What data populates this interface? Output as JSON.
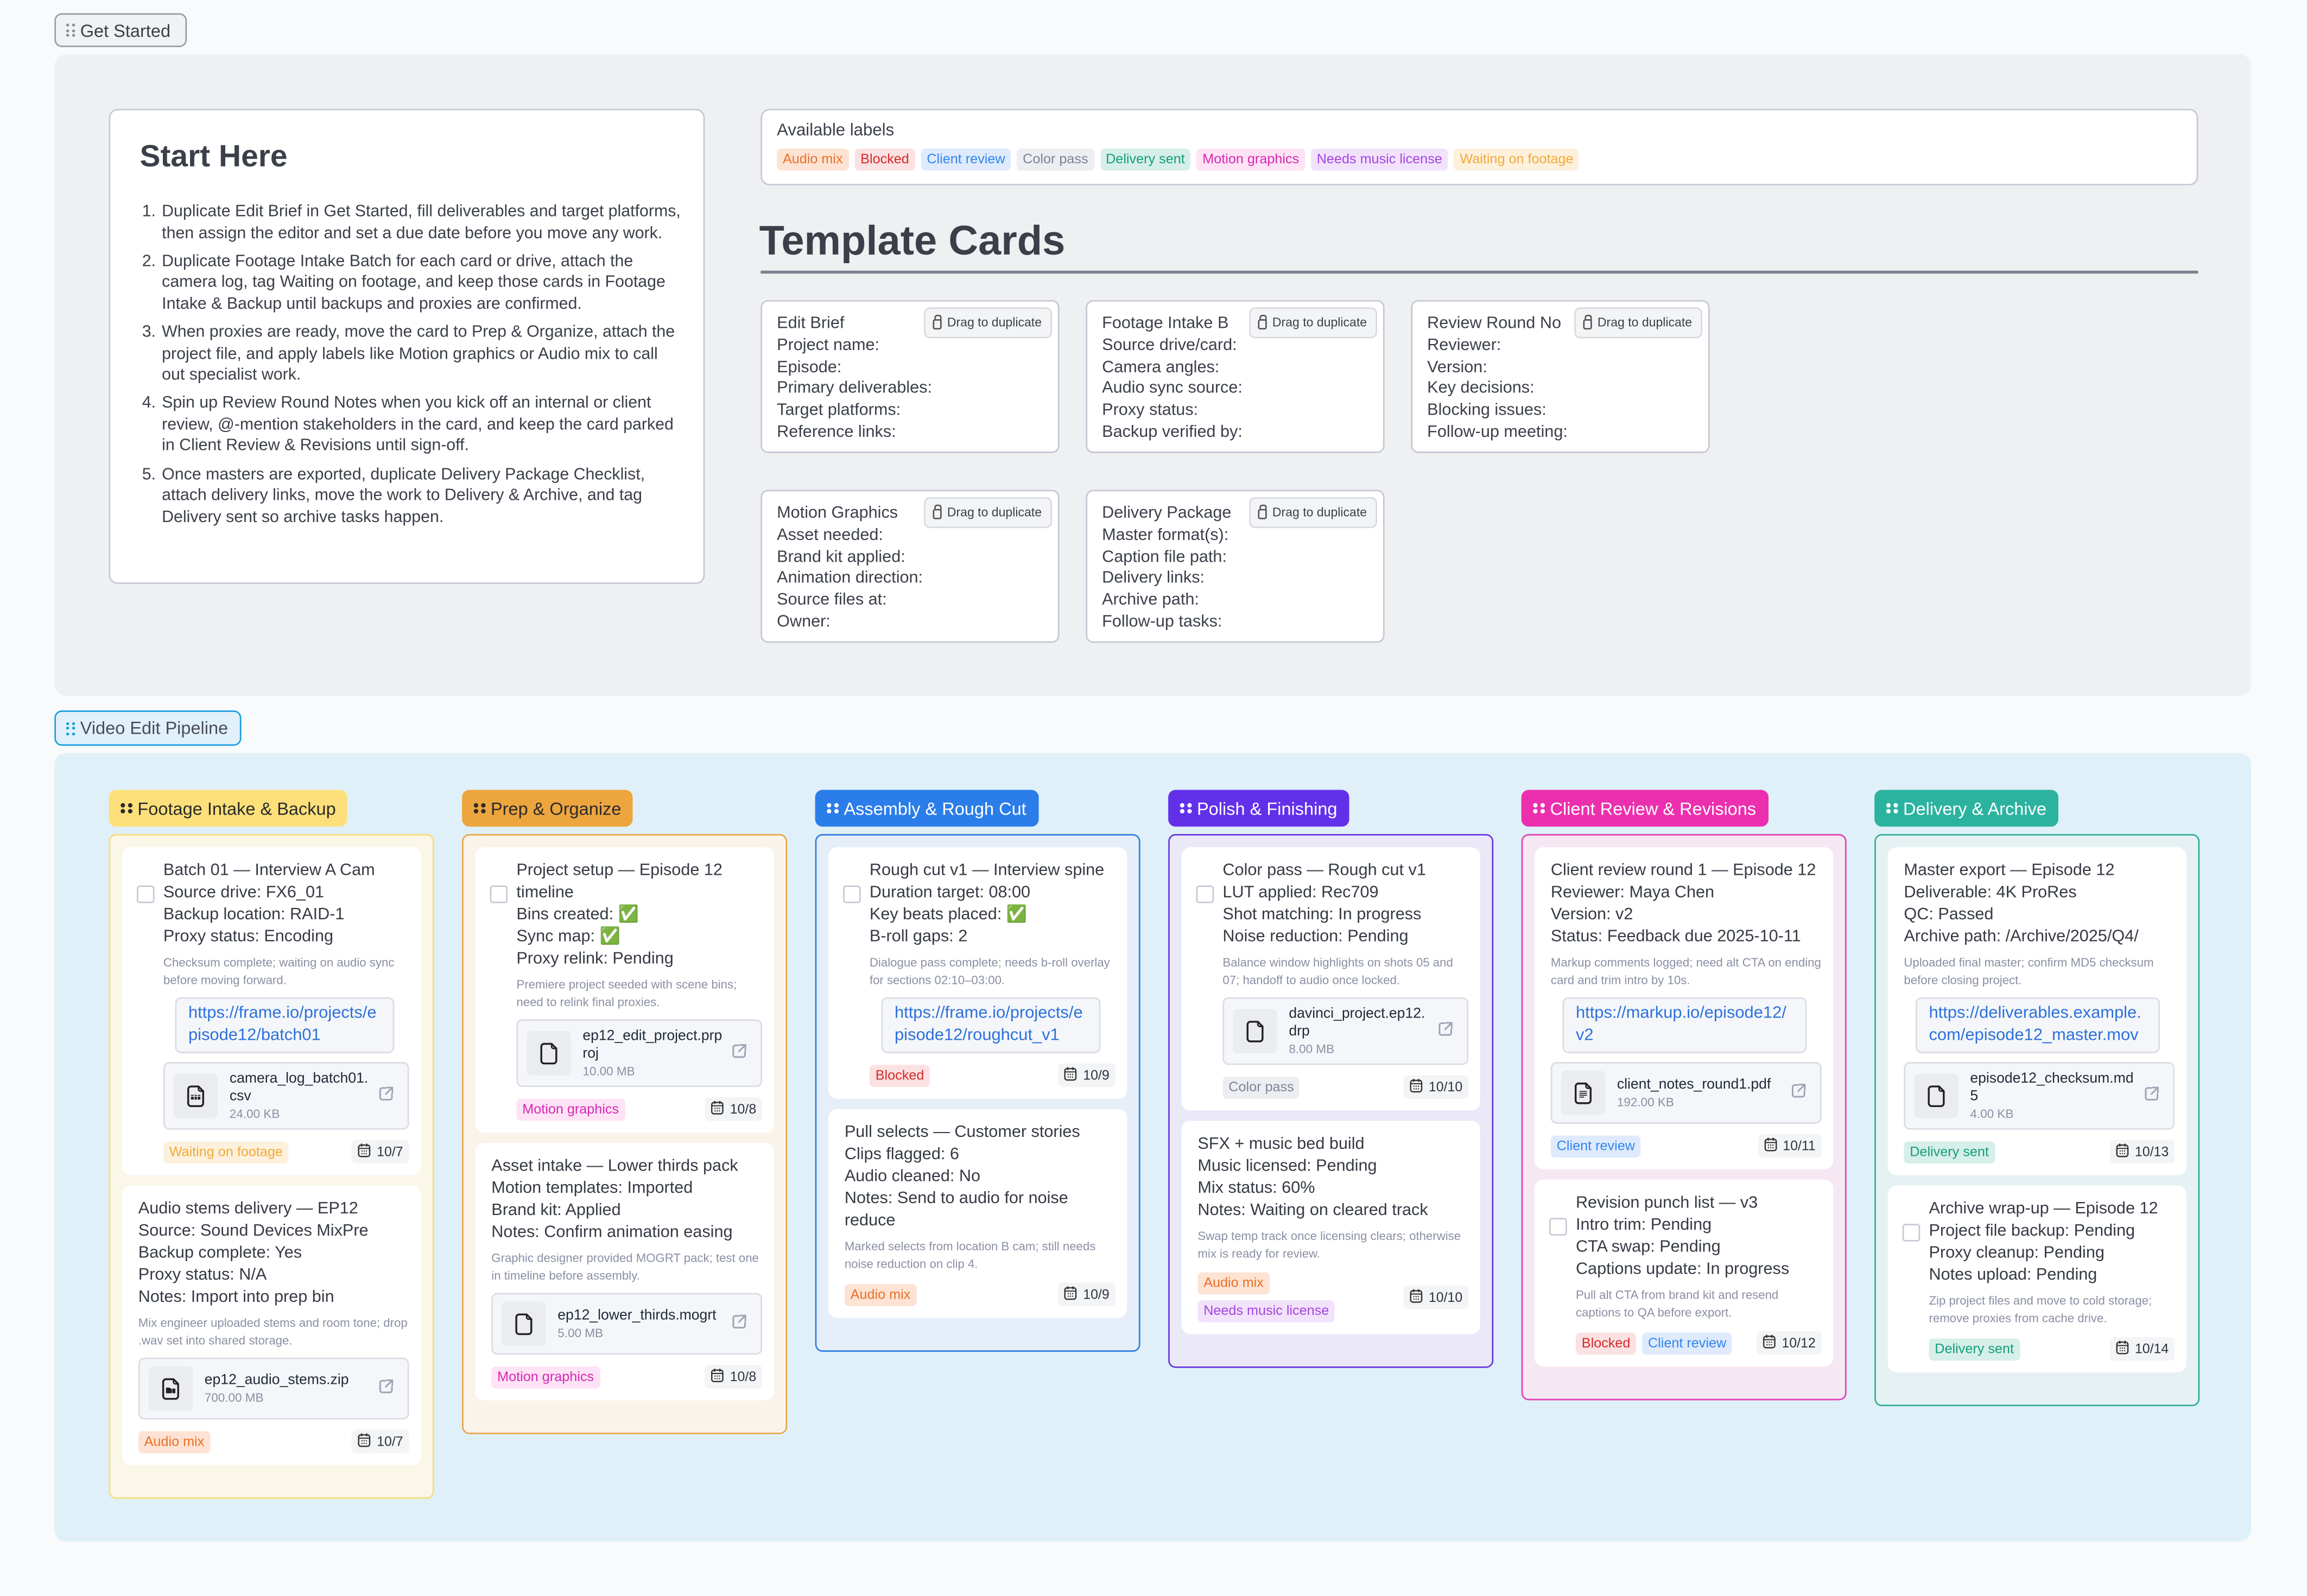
{
  "get_started": {
    "tag": "Get Started",
    "start_here": {
      "title": "Start Here",
      "steps": [
        "Duplicate Edit Brief in Get Started, fill deliverables and target platforms, then assign the editor and set a due date before you move any work.",
        "Duplicate Footage Intake Batch for each card or drive, attach the camera log, tag Waiting on footage, and keep those cards in Footage Intake & Backup until backups and proxies are confirmed.",
        "When proxies are ready, move the card to Prep & Organize, attach the project file, and apply labels like Motion graphics or Audio mix to call out specialist work.",
        "Spin up Review Round Notes when you kick off an internal or client review, @-mention stakeholders in the card, and keep the card parked in Client Review & Revisions until sign-off.",
        "Once masters are exported, duplicate Delivery Package Checklist, attach delivery links, move the work to Delivery & Archive, and tag Delivery sent so archive tasks happen."
      ]
    },
    "labels": {
      "title": "Available labels",
      "items": [
        {
          "text": "Audio mix",
          "cls": "c-audio",
          "color": "#e8702a"
        },
        {
          "text": "Blocked",
          "cls": "c-blocked",
          "color": "#d62b2b"
        },
        {
          "text": "Client review",
          "cls": "c-client",
          "color": "#2f86ee"
        },
        {
          "text": "Color pass",
          "cls": "c-color",
          "color": "#7f8393"
        },
        {
          "text": "Delivery sent",
          "cls": "c-delivery",
          "color": "#139e7b"
        },
        {
          "text": "Motion graphics",
          "cls": "c-motion",
          "color": "#d628b4"
        },
        {
          "text": "Needs music license",
          "cls": "c-music",
          "color": "#a445e0"
        },
        {
          "text": "Waiting on footage",
          "cls": "c-waiting",
          "color": "#f2a93b"
        }
      ]
    },
    "template_heading": "Template Cards",
    "duplicate_label": "Drag to duplicate",
    "templates": [
      {
        "title": "Edit Brief",
        "fields": [
          "Project name:",
          "Episode:",
          "Primary deliverables:",
          "Target platforms:",
          "Reference links:"
        ]
      },
      {
        "title": "Footage Intake B",
        "fields": [
          "Source drive/card:",
          "Camera angles:",
          "Audio sync source:",
          "Proxy status:",
          "Backup verified by:"
        ]
      },
      {
        "title": "Review Round No",
        "fields": [
          "Reviewer:",
          "Version:",
          "Key decisions:",
          "Blocking issues:",
          "Follow-up meeting:"
        ]
      },
      {
        "title": "Motion Graphics",
        "fields": [
          "Asset needed:",
          "Brand kit applied:",
          "Animation direction:",
          "Source files at:",
          "Owner:"
        ]
      },
      {
        "title": "Delivery Package",
        "fields": [
          "Master format(s):",
          "Caption file path:",
          "Delivery links:",
          "Archive path:",
          "Follow-up tasks:"
        ]
      }
    ]
  },
  "pipeline": {
    "tag": "Video Edit Pipeline",
    "columns": [
      {
        "title": "Footage Intake & Backup",
        "head_bg": "#fde07a",
        "head_fg": "#2a2a2a",
        "border": "#f7dc79",
        "body_bg": "#fbf7e8",
        "cards": [
          {
            "checkbox": true,
            "lines": [
              "Batch 01 — Interview A Cam",
              "Source drive: FX6_01",
              "Backup location: RAID-1",
              "Proxy status: Encoding"
            ],
            "desc": "Checksum complete; waiting on audio sync before moving forward.",
            "link": "https://frame.io/projects/episode12/batch01",
            "attachment": {
              "name": "camera_log_batch01.csv",
              "size": "24.00 KB",
              "icon": "spreadsheet-file-icon"
            },
            "labels": [
              {
                "text": "Waiting on footage",
                "cls": "c-waiting"
              }
            ],
            "date": "10/7"
          },
          {
            "checkbox": false,
            "lines": [
              "Audio stems delivery — EP12",
              "Source: Sound Devices MixPre",
              "Backup complete: Yes",
              "Proxy status: N/A",
              "Notes: Import into prep bin"
            ],
            "desc": "Mix engineer uploaded stems and room tone; drop .wav set into shared storage.",
            "link": null,
            "attachment": {
              "name": "ep12_audio_stems.zip",
              "size": "700.00 MB",
              "icon": "archive-file-icon"
            },
            "labels": [
              {
                "text": "Audio mix",
                "cls": "c-audio"
              }
            ],
            "date": "10/7"
          }
        ]
      },
      {
        "title": "Prep & Organize",
        "head_bg": "#eda53e",
        "head_fg": "#2a2a2a",
        "border": "#eaa64a",
        "body_bg": "#faf3ea",
        "cards": [
          {
            "checkbox": true,
            "lines": [
              "Project setup — Episode 12 timeline",
              "Bins created: ✅",
              "Sync map: ✅",
              "Proxy relink: Pending"
            ],
            "desc": "Premiere project seeded with scene bins; need to relink final proxies.",
            "link": null,
            "attachment": {
              "name": "ep12_edit_project.prproj",
              "size": "10.00 MB",
              "icon": "file-icon"
            },
            "labels": [
              {
                "text": "Motion graphics",
                "cls": "c-motion"
              }
            ],
            "date": "10/8"
          },
          {
            "checkbox": false,
            "lines": [
              "Asset intake — Lower thirds pack",
              "Motion templates: Imported",
              "Brand kit: Applied",
              "Notes: Confirm animation easing"
            ],
            "desc": "Graphic designer provided MOGRT pack; test one in timeline before assembly.",
            "link": null,
            "attachment": {
              "name": "ep12_lower_thirds.mogrt",
              "size": "5.00 MB",
              "icon": "file-icon"
            },
            "labels": [
              {
                "text": "Motion graphics",
                "cls": "c-motion"
              }
            ],
            "date": "10/8"
          }
        ]
      },
      {
        "title": "Assembly & Rough Cut",
        "head_bg": "#2b7de9",
        "head_fg": "#ffffff",
        "border": "#2f7ddf",
        "body_bg": "#e6eef9",
        "cards": [
          {
            "checkbox": true,
            "lines": [
              "Rough cut v1 — Interview spine",
              "Duration target: 08:00",
              "Key beats placed: ✅",
              "B-roll gaps: 2"
            ],
            "desc": "Dialogue pass complete; needs b-roll overlay for sections 02:10–03:00.",
            "link": "https://frame.io/projects/episode12/roughcut_v1",
            "attachment": null,
            "labels": [
              {
                "text": "Blocked",
                "cls": "c-blocked"
              }
            ],
            "date": "10/9"
          },
          {
            "checkbox": false,
            "lines": [
              "Pull selects — Customer stories",
              "Clips flagged: 6",
              "Audio cleaned: No",
              "Notes: Send to audio for noise reduce"
            ],
            "desc": "Marked selects from location B cam; still needs noise reduction on clip 4.",
            "link": null,
            "attachment": null,
            "labels": [
              {
                "text": "Audio mix",
                "cls": "c-audio"
              }
            ],
            "date": "10/9"
          }
        ]
      },
      {
        "title": "Polish & Finishing",
        "head_bg": "#6330ea",
        "head_fg": "#ffffff",
        "border": "#6738dd",
        "body_bg": "#ebe8f8",
        "cards": [
          {
            "checkbox": true,
            "lines": [
              "Color pass — Rough cut v1",
              "LUT applied: Rec709",
              "Shot matching: In progress",
              "Noise reduction: Pending"
            ],
            "desc": "Balance window highlights on shots 05 and 07; handoff to audio once locked.",
            "link": null,
            "attachment": {
              "name": "davinci_project.ep12.drp",
              "size": "8.00 MB",
              "icon": "file-icon"
            },
            "labels": [
              {
                "text": "Color pass",
                "cls": "c-color"
              }
            ],
            "date": "10/10"
          },
          {
            "checkbox": false,
            "lines": [
              "SFX + music bed build",
              "Music licensed: Pending",
              "Mix status: 60%",
              "Notes: Waiting on cleared track"
            ],
            "desc": "Swap temp track once licensing clears; otherwise mix is ready for review.",
            "link": null,
            "attachment": null,
            "labels": [
              {
                "text": "Audio mix",
                "cls": "c-audio"
              },
              {
                "text": "Needs music license",
                "cls": "c-music"
              }
            ],
            "date": "10/10"
          }
        ]
      },
      {
        "title": "Client Review & Revisions",
        "head_bg": "#ec2fae",
        "head_fg": "#ffffff",
        "border": "#e041b0",
        "body_bg": "#f6e8f3",
        "cards": [
          {
            "checkbox": false,
            "lines": [
              "Client review round 1 — Episode 12",
              "Reviewer: Maya Chen",
              "Version: v2",
              "Status: Feedback due 2025-10-11"
            ],
            "desc": "Markup comments logged; need alt CTA on ending card and trim intro by 10s.",
            "link": "https://markup.io/episode12/v2",
            "attachment": {
              "name": "client_notes_round1.pdf",
              "size": "192.00 KB",
              "icon": "document-file-icon"
            },
            "labels": [
              {
                "text": "Client review",
                "cls": "c-client"
              }
            ],
            "date": "10/11"
          },
          {
            "checkbox": true,
            "lines": [
              "Revision punch list — v3",
              "Intro trim: Pending",
              "CTA swap: Pending",
              "Captions update: In progress"
            ],
            "desc": "Pull alt CTA from brand kit and resend captions to QA before export.",
            "link": null,
            "attachment": null,
            "labels": [
              {
                "text": "Blocked",
                "cls": "c-blocked"
              },
              {
                "text": "Client review",
                "cls": "c-client"
              }
            ],
            "date": "10/12"
          }
        ]
      },
      {
        "title": "Delivery & Archive",
        "head_bg": "#2bb3a0",
        "head_fg": "#ffffff",
        "border": "#33ad9a",
        "body_bg": "#e5f1f2",
        "cards": [
          {
            "checkbox": false,
            "lines": [
              "Master export — Episode 12",
              "Deliverable: 4K ProRes",
              "QC: Passed",
              "Archive path: /Archive/2025/Q4/"
            ],
            "desc": "Uploaded final master; confirm MD5 checksum before closing project.",
            "link": "https://deliverables.example.com/episode12_master.mov",
            "attachment": {
              "name": "episode12_checksum.md5",
              "size": "4.00 KB",
              "icon": "file-icon"
            },
            "labels": [
              {
                "text": "Delivery sent",
                "cls": "c-delivery"
              }
            ],
            "date": "10/13"
          },
          {
            "checkbox": true,
            "lines": [
              "Archive wrap-up — Episode 12",
              "Project file backup: Pending",
              "Proxy cleanup: Pending",
              "Notes upload: Pending"
            ],
            "desc": "Zip project files and move to cold storage; remove proxies from cache drive.",
            "link": null,
            "attachment": null,
            "labels": [
              {
                "text": "Delivery sent",
                "cls": "c-delivery"
              }
            ],
            "date": "10/14"
          }
        ]
      }
    ]
  }
}
